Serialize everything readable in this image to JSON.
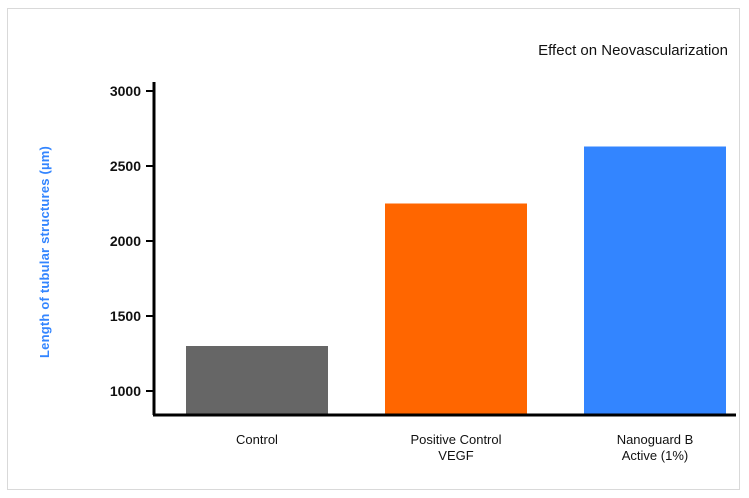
{
  "chart_data": {
    "type": "bar",
    "title": "Effect on Neovascularization",
    "xlabel": "",
    "ylabel": "Length of tubular structures (µm)",
    "ylim": [
      840,
      3060
    ],
    "yticks": [
      1000,
      1500,
      2000,
      2500,
      3000
    ],
    "grid": false,
    "categories": [
      [
        "Control"
      ],
      [
        "Positive Control",
        "VEGF"
      ],
      [
        "Nanoguard B",
        "Active (1%)"
      ]
    ],
    "values": [
      1300,
      2250,
      2630
    ],
    "bar_colors": [
      "#666666",
      "#ff6600",
      "#3385ff"
    ],
    "ylabel_color": "#3385ff",
    "axis_color": "#000000"
  }
}
